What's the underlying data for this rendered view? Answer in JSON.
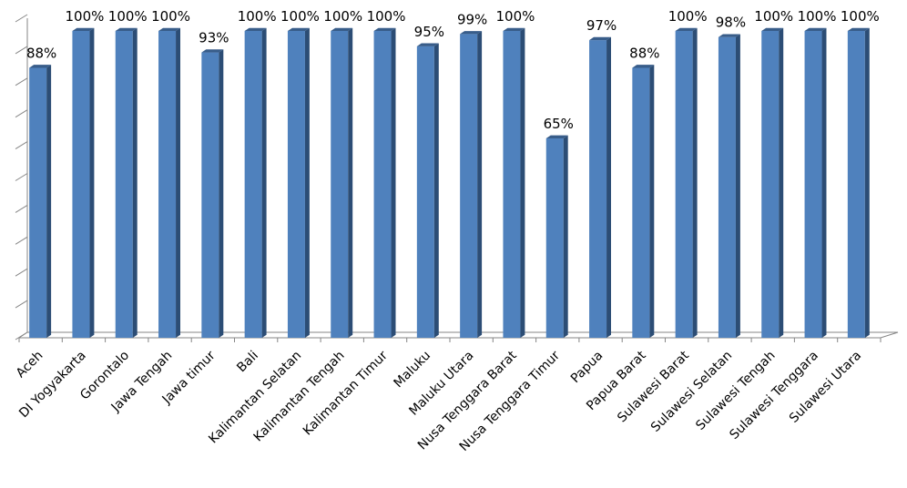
{
  "chart_data": {
    "type": "bar",
    "categories": [
      "Aceh",
      "DI Yogyakarta",
      "Gorontalo",
      "Jawa Tengah",
      "Jawa timur",
      "Bali",
      "Kalimantan Selatan",
      "Kalimantan Tengah",
      "Kalimantan Timur",
      "Maluku",
      "Maluku Utara",
      "Nusa Tenggara Barat",
      "Nusa Tenggara Timur",
      "Papua",
      "Papua Barat",
      "Sulawesi Barat",
      "Sulawesi Selatan",
      "Sulawesi Tengah",
      "Sulawesi Tenggara",
      "Sulawesi Utara"
    ],
    "values": [
      88,
      100,
      100,
      100,
      93,
      100,
      100,
      100,
      100,
      95,
      99,
      100,
      65,
      97,
      88,
      100,
      98,
      100,
      100,
      100
    ],
    "data_labels": [
      "88%",
      "100%",
      "100%",
      "100%",
      "93%",
      "100%",
      "100%",
      "100%",
      "100%",
      "95%",
      "99%",
      "100%",
      "65%",
      "97%",
      "88%",
      "100%",
      "98%",
      "100%",
      "100%",
      "100%"
    ],
    "ylim": [
      0,
      100
    ],
    "grid": false,
    "legend": "none",
    "bar_color": "#4F81BD",
    "bar_side_color": "#2C4D75",
    "bar_top_color": "#385D8A",
    "axis_color": "#868686"
  }
}
